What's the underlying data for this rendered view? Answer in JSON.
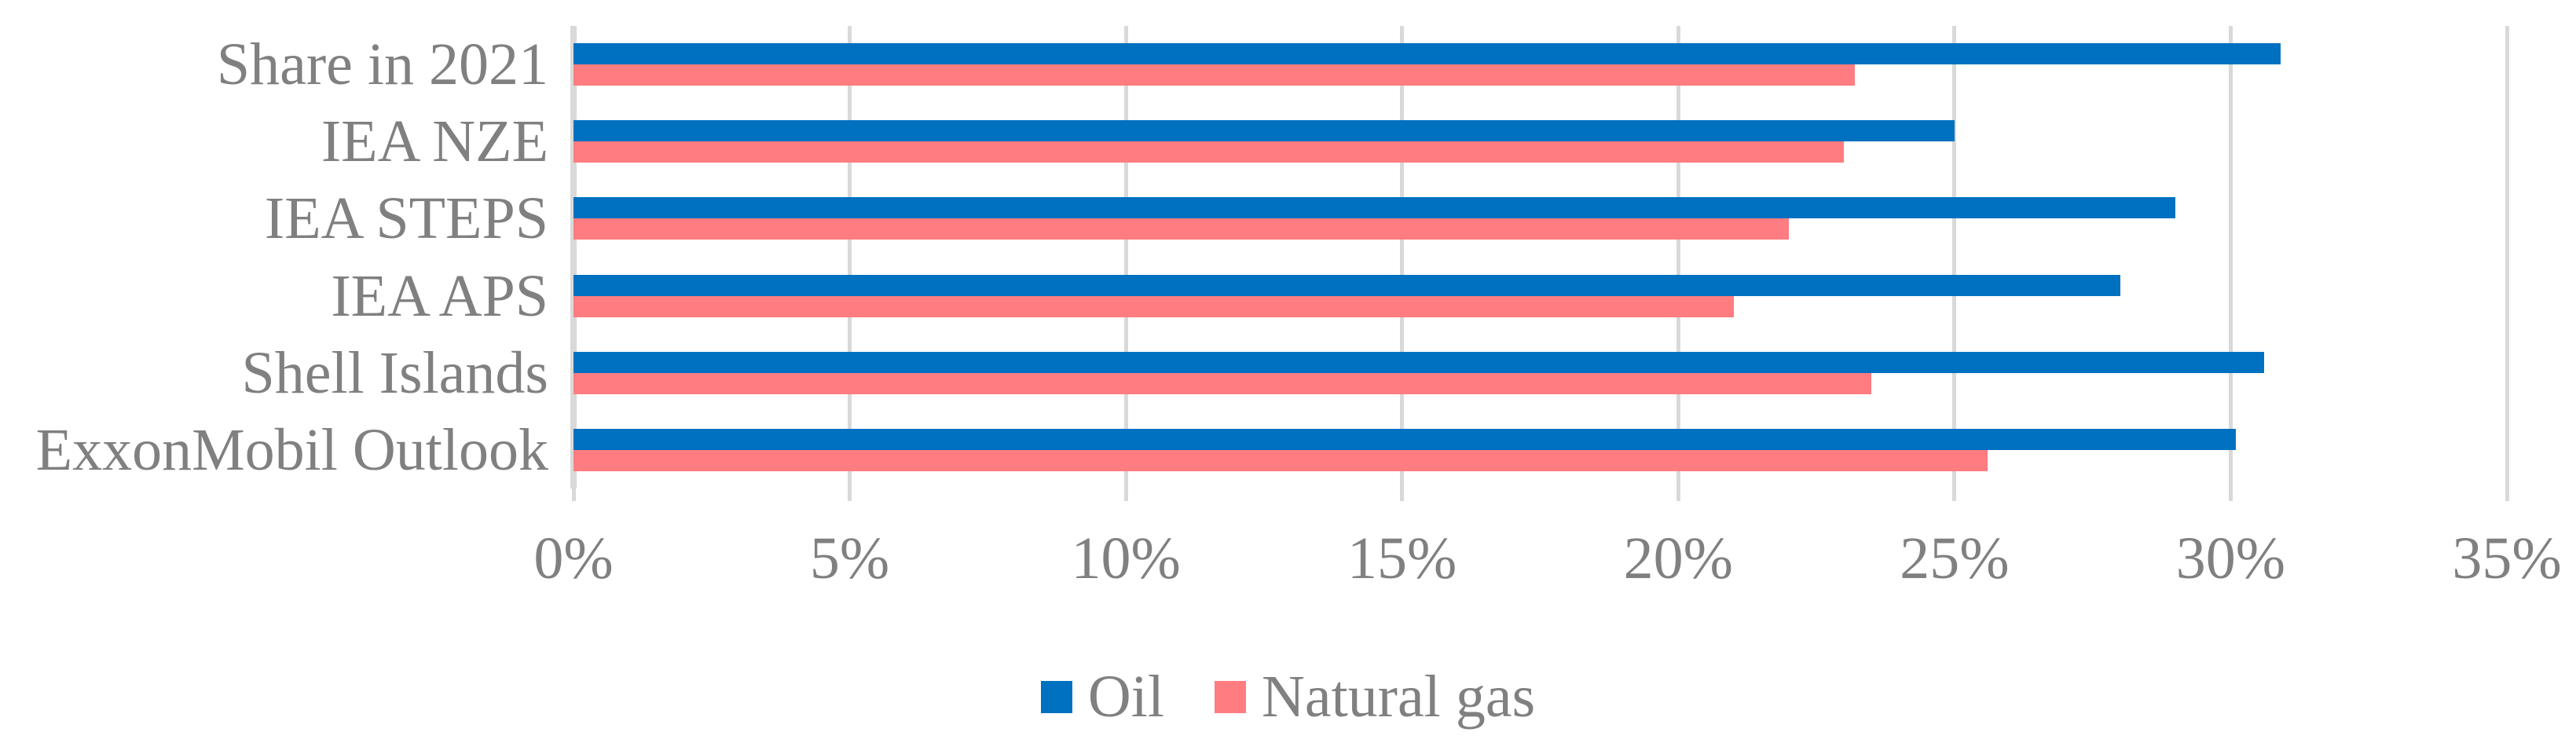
{
  "chart_data": {
    "type": "bar",
    "orientation": "horizontal",
    "title": "",
    "xlabel": "",
    "ylabel": "",
    "categories": [
      "Share in 2021",
      "IEA NZE",
      "IEA STEPS",
      "IEA APS",
      "Shell Islands",
      "ExxonMobil Outlook"
    ],
    "series": [
      {
        "name": "Oil",
        "color": "#0070C0",
        "values": [
          30.9,
          25.0,
          29.0,
          28.0,
          30.6,
          30.1
        ]
      },
      {
        "name": "Natural gas",
        "color": "#FF7C80",
        "values": [
          23.2,
          23.0,
          22.0,
          21.0,
          23.5,
          25.6
        ]
      }
    ],
    "x_axis": {
      "min": 0,
      "max": 35,
      "step": 5,
      "tick_labels": [
        "0%",
        "5%",
        "10%",
        "15%",
        "20%",
        "25%",
        "30%",
        "35%"
      ],
      "format": "percent"
    },
    "grid": true,
    "legend_position": "bottom-center",
    "colors": {
      "gridline": "#D9D9D9",
      "text": "#808080",
      "background": "#FFFFFF"
    }
  }
}
